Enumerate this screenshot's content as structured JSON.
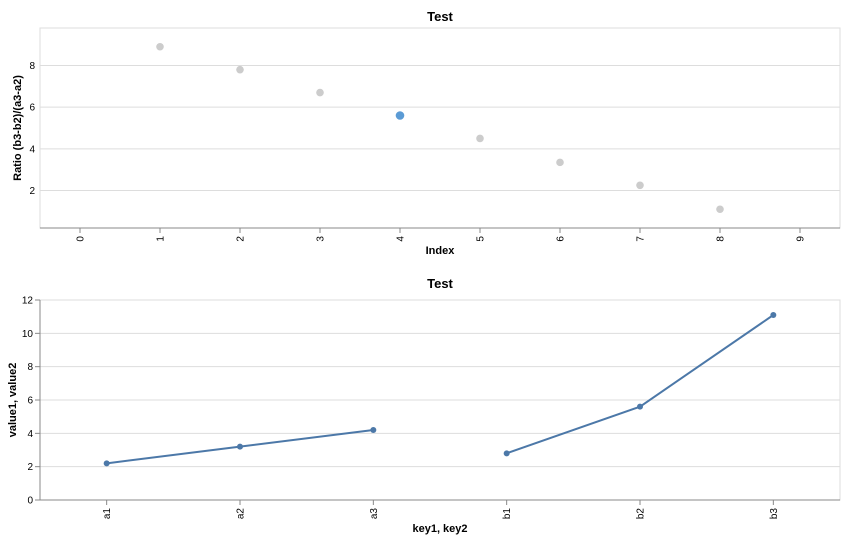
{
  "chart_data": [
    {
      "type": "scatter",
      "title": "Test",
      "xlabel": "Index",
      "ylabel": "Ratio (b3-b2)/(a3-a2)",
      "xlim": [
        -0.5,
        9.5
      ],
      "ylim": [
        0.2,
        9.8
      ],
      "xticks": [
        "0",
        "1",
        "2",
        "3",
        "4",
        "5",
        "6",
        "7",
        "8",
        "9"
      ],
      "yticks": [
        "2",
        "4",
        "6",
        "8"
      ],
      "grid": true,
      "legend": "none",
      "colors": {
        "point": "#cccccc",
        "highlight": "#5b9bd5"
      },
      "points": [
        {
          "x": 1,
          "y": 8.9,
          "highlight": false
        },
        {
          "x": 2,
          "y": 7.8,
          "highlight": false
        },
        {
          "x": 3,
          "y": 6.7,
          "highlight": false
        },
        {
          "x": 4,
          "y": 5.6,
          "highlight": true
        },
        {
          "x": 5,
          "y": 4.5,
          "highlight": false
        },
        {
          "x": 6,
          "y": 3.35,
          "highlight": false
        },
        {
          "x": 7,
          "y": 2.25,
          "highlight": false
        },
        {
          "x": 8,
          "y": 1.1,
          "highlight": false
        }
      ]
    },
    {
      "type": "line",
      "title": "Test",
      "xlabel": "key1, key2",
      "ylabel": "value1, value2",
      "categories": [
        "a1",
        "a2",
        "a3",
        "b1",
        "b2",
        "b3"
      ],
      "ylim": [
        0,
        12
      ],
      "yticks": [
        "0",
        "2",
        "4",
        "6",
        "8",
        "10",
        "12"
      ],
      "grid": true,
      "legend": "none",
      "colors": {
        "line": "#4c78a8"
      },
      "series": [
        {
          "values": [
            [
              0,
              2.2
            ],
            [
              1,
              3.2
            ],
            [
              2,
              4.2
            ]
          ]
        },
        {
          "values": [
            [
              3,
              2.8
            ],
            [
              4,
              5.6
            ],
            [
              5,
              11.1
            ]
          ]
        }
      ]
    }
  ]
}
